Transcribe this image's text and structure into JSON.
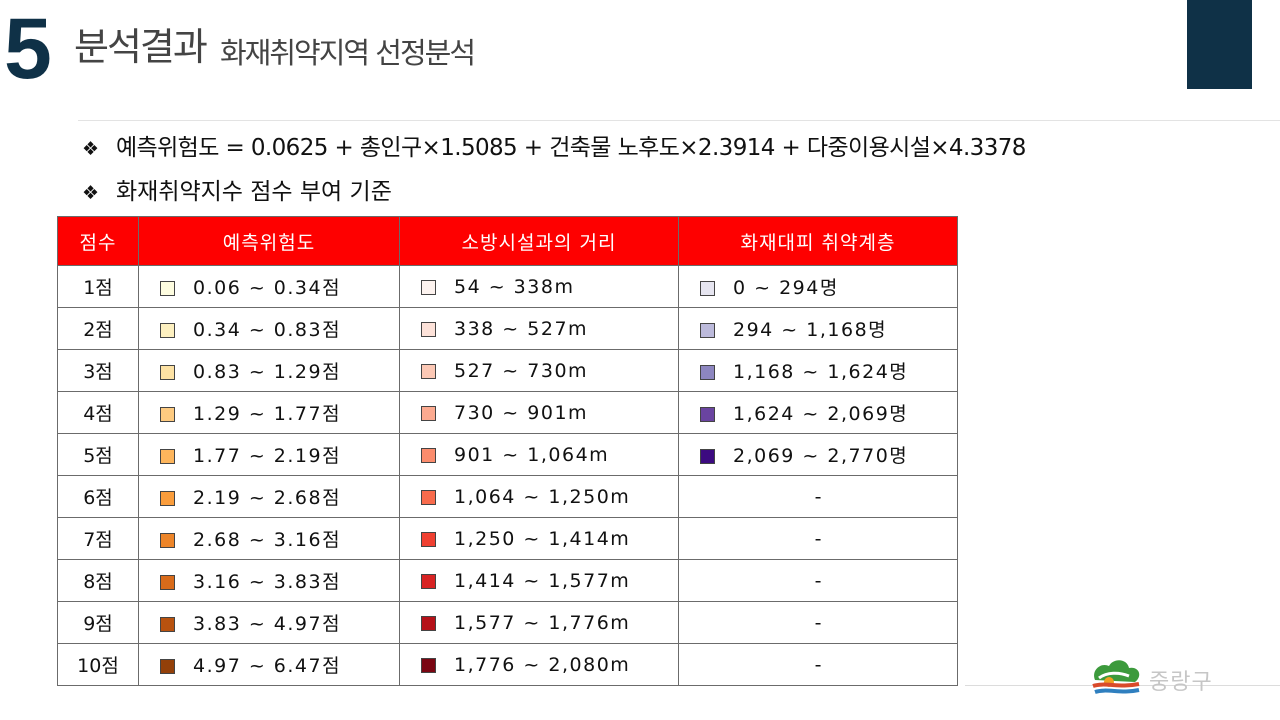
{
  "header": {
    "number": "5",
    "title": "분석결과",
    "subtitle": "화재취약지역 선정분석"
  },
  "bullets": [
    "예측위험도 = 0.0625 + 총인구×1.5085 + 건축물 노후도×2.3914 + 다중이용시설×4.3378",
    "화재취약지수 점수 부여 기준"
  ],
  "table": {
    "headers": [
      "점수",
      "예측위험도",
      "소방시설과의 거리",
      "화재대피 취약계층"
    ],
    "rows": [
      {
        "score": "1점",
        "risk": "0.06 ~ 0.34점",
        "risk_color": "#fefde0",
        "distance": "54 ~ 338m",
        "dist_color": "#fdf3ef",
        "vulnerable": "0 ~ 294명",
        "vuln_color": "#e6e5f0"
      },
      {
        "score": "2점",
        "risk": "0.34 ~ 0.83점",
        "risk_color": "#fdf0c0",
        "distance": "338 ~ 527m",
        "dist_color": "#fde2d9",
        "vulnerable": "294 ~ 1,168명",
        "vuln_color": "#bcbadb"
      },
      {
        "score": "3점",
        "risk": "0.83 ~ 1.29점",
        "risk_color": "#fde2a4",
        "distance": "527 ~ 730m",
        "dist_color": "#fcc8b5",
        "vulnerable": "1,168 ~ 1,624명",
        "vuln_color": "#8d86c0"
      },
      {
        "score": "4점",
        "risk": "1.29 ~ 1.77점",
        "risk_color": "#fdca80",
        "distance": "730 ~ 901m",
        "dist_color": "#fcaa90",
        "vulnerable": "1,624 ~ 2,069명",
        "vuln_color": "#6a44a0"
      },
      {
        "score": "5점",
        "risk": "1.77 ~ 2.19점",
        "risk_color": "#fdb55c",
        "distance": "901 ~ 1,064m",
        "dist_color": "#fb8c6d",
        "vulnerable": "2,069 ~ 2,770명",
        "vuln_color": "#3c0a80"
      },
      {
        "score": "6점",
        "risk": "2.19 ~ 2.68점",
        "risk_color": "#fa9d3c",
        "distance": "1,064 ~ 1,250m",
        "dist_color": "#f86b4c",
        "vulnerable": "-",
        "vuln_color": ""
      },
      {
        "score": "7점",
        "risk": "2.68 ~ 3.16점",
        "risk_color": "#ed8529",
        "distance": "1,250 ~ 1,414m",
        "dist_color": "#ef4031",
        "vulnerable": "-",
        "vuln_color": ""
      },
      {
        "score": "8점",
        "risk": "3.16 ~ 3.83점",
        "risk_color": "#d96b1a",
        "distance": "1,414 ~ 1,577m",
        "dist_color": "#d82323",
        "vulnerable": "-",
        "vuln_color": ""
      },
      {
        "score": "9점",
        "risk": "3.83 ~ 4.97점",
        "risk_color": "#b8520f",
        "distance": "1,577 ~ 1,776m",
        "dist_color": "#b51118",
        "vulnerable": "-",
        "vuln_color": ""
      },
      {
        "score": "10점",
        "risk": "4.97 ~ 6.47점",
        "risk_color": "#934009",
        "distance": "1,776 ~ 2,080m",
        "dist_color": "#7a0612",
        "vulnerable": "-",
        "vuln_color": ""
      }
    ]
  },
  "footer": {
    "logo_text": "중랑구"
  },
  "colors": {
    "brand_navy": "#0f3147",
    "table_header_red": "#fe0000"
  }
}
